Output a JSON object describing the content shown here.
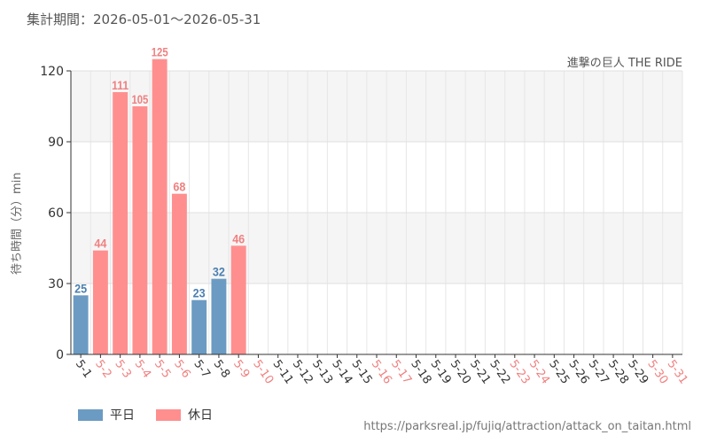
{
  "period_label": "集計期間：2026-05-01～2026-05-31",
  "source_url": "https://parksreal.jp/fujiq/attraction/attack_on_taitan.html",
  "colors": {
    "weekday": "#6b9bc3",
    "holiday": "#ff8f8f",
    "holiday_label": "#f08080",
    "weekday_label": "#4a7fb0"
  },
  "chart_data": {
    "type": "bar",
    "title": "",
    "subtitle": "進撃の巨人 THE RIDE",
    "xlabel": "",
    "ylabel": "待ち時間（分）min",
    "ylim": [
      0,
      120
    ],
    "yticks": [
      0,
      30,
      60,
      90,
      120
    ],
    "grid": true,
    "legend_position": "bottom-left",
    "legend": [
      {
        "key": "weekday",
        "label": "平日"
      },
      {
        "key": "holiday",
        "label": "休日"
      }
    ],
    "categories": [
      "5-1",
      "5-2",
      "5-3",
      "5-4",
      "5-5",
      "5-6",
      "5-7",
      "5-8",
      "5-9",
      "5-10",
      "5-11",
      "5-12",
      "5-13",
      "5-14",
      "5-15",
      "5-16",
      "5-17",
      "5-18",
      "5-19",
      "5-20",
      "5-21",
      "5-22",
      "5-23",
      "5-24",
      "5-25",
      "5-26",
      "5-27",
      "5-28",
      "5-29",
      "5-30",
      "5-31"
    ],
    "day_types": [
      "weekday",
      "holiday",
      "holiday",
      "holiday",
      "holiday",
      "holiday",
      "weekday",
      "weekday",
      "holiday",
      "holiday",
      "weekday",
      "weekday",
      "weekday",
      "weekday",
      "weekday",
      "holiday",
      "holiday",
      "weekday",
      "weekday",
      "weekday",
      "weekday",
      "weekday",
      "holiday",
      "holiday",
      "weekday",
      "weekday",
      "weekday",
      "weekday",
      "weekday",
      "holiday",
      "holiday"
    ],
    "values": [
      25,
      44,
      111,
      105,
      125,
      68,
      23,
      32,
      46,
      null,
      null,
      null,
      null,
      null,
      null,
      null,
      null,
      null,
      null,
      null,
      null,
      null,
      null,
      null,
      null,
      null,
      null,
      null,
      null,
      null,
      null
    ]
  }
}
